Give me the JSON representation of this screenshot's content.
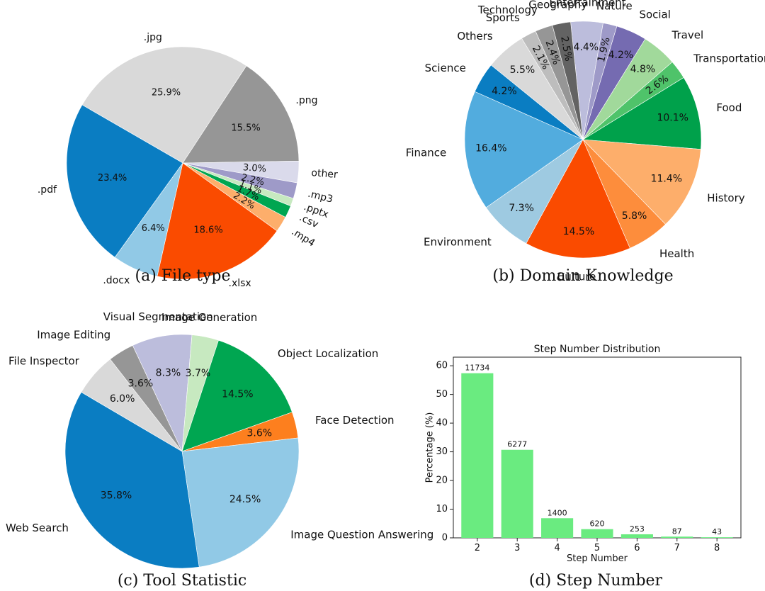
{
  "chart_data": [
    {
      "type": "pie",
      "caption": "(a) File type",
      "slices": [
        {
          "label": ".jpg",
          "value": 25.9,
          "pct": "25.9%",
          "color": "#d9d9d9"
        },
        {
          "label": ".png",
          "value": 15.5,
          "pct": "15.5%",
          "color": "#969696"
        },
        {
          "label": "other",
          "value": 3.0,
          "pct": "3.0%",
          "color": "#dadaeb"
        },
        {
          "label": ".mp3",
          "value": 2.2,
          "pct": "2.2%",
          "color": "#9e9ac8"
        },
        {
          "label": ".pptx",
          "value": 1.1,
          "pct": "1.1%",
          "color": "#c7e9c0"
        },
        {
          "label": ".csv",
          "value": 1.7,
          "pct": "1.7%",
          "color": "#00a651"
        },
        {
          "label": ".mp4",
          "value": 2.2,
          "pct": "2.2%",
          "color": "#fdae6b"
        },
        {
          "label": ".xlsx",
          "value": 18.6,
          "pct": "18.6%",
          "color": "#fa4b00"
        },
        {
          "label": ".docx",
          "value": 6.4,
          "pct": "6.4%",
          "color": "#91c9e6"
        },
        {
          "label": ".pdf",
          "value": 23.4,
          "pct": "23.4%",
          "color": "#0a7dc2"
        }
      ]
    },
    {
      "type": "pie",
      "caption": "(b) Domain Knowledge",
      "slices": [
        {
          "label": "Entertainment",
          "value": 4.4,
          "pct": "4.4%",
          "color": "#bcbddc"
        },
        {
          "label": "Nature",
          "value": 1.9,
          "pct": "1.9%",
          "color": "#9e9ac8"
        },
        {
          "label": "Social",
          "value": 4.2,
          "pct": "4.2%",
          "color": "#756bb1"
        },
        {
          "label": "Travel",
          "value": 4.8,
          "pct": "4.8%",
          "color": "#a1d99b"
        },
        {
          "label": "Transportation",
          "value": 2.6,
          "pct": "2.6%",
          "color": "#4fc36a"
        },
        {
          "label": "Food",
          "value": 10.1,
          "pct": "10.1%",
          "color": "#00a14b"
        },
        {
          "label": "History",
          "value": 11.4,
          "pct": "11.4%",
          "color": "#fdae6b"
        },
        {
          "label": "Health",
          "value": 5.8,
          "pct": "5.8%",
          "color": "#fd8d3c"
        },
        {
          "label": "Culture",
          "value": 14.5,
          "pct": "14.5%",
          "color": "#fa4b00"
        },
        {
          "label": "Environment",
          "value": 7.3,
          "pct": "7.3%",
          "color": "#9ecae1"
        },
        {
          "label": "Finance",
          "value": 16.4,
          "pct": "16.4%",
          "color": "#52acde"
        },
        {
          "label": "Science",
          "value": 4.2,
          "pct": "4.2%",
          "color": "#0a7dc2"
        },
        {
          "label": "Others",
          "value": 5.5,
          "pct": "5.5%",
          "color": "#d9d9d9"
        },
        {
          "label": "Sports",
          "value": 2.1,
          "pct": "2.1%",
          "color": "#bdbdbd"
        },
        {
          "label": "Technology",
          "value": 2.4,
          "pct": "2.4%",
          "color": "#969696"
        },
        {
          "label": "Geography",
          "value": 2.5,
          "pct": "2.5%",
          "color": "#636363"
        }
      ]
    },
    {
      "type": "pie",
      "caption": "(c) Tool Statistic",
      "slices": [
        {
          "label": "Visual Segmentation",
          "value": 8.3,
          "pct": "8.3%",
          "color": "#bcbddc"
        },
        {
          "label": "Image Generation",
          "value": 3.7,
          "pct": "3.7%",
          "color": "#c7e9c0"
        },
        {
          "label": "Object Localization",
          "value": 14.5,
          "pct": "14.5%",
          "color": "#00a651"
        },
        {
          "label": "Face Detection",
          "value": 3.6,
          "pct": "3.6%",
          "color": "#fd7f1e"
        },
        {
          "label": "Image Question Answering",
          "value": 24.5,
          "pct": "24.5%",
          "color": "#91c9e6"
        },
        {
          "label": "Web Search",
          "value": 35.8,
          "pct": "35.8%",
          "color": "#0a7dc2"
        },
        {
          "label": "File Inspector",
          "value": 6.0,
          "pct": "6.0%",
          "color": "#d9d9d9"
        },
        {
          "label": "Image Editing",
          "value": 3.6,
          "pct": "3.6%",
          "color": "#969696"
        }
      ]
    },
    {
      "type": "bar",
      "caption": "(d) Step Number",
      "title": "Step Number Distribution",
      "xlabel": "Step Number",
      "ylabel": "Percentage (%)",
      "categories": [
        "2",
        "3",
        "4",
        "5",
        "6",
        "7",
        "8"
      ],
      "values": [
        57.4,
        30.7,
        6.85,
        3.03,
        1.24,
        0.43,
        0.21
      ],
      "data_labels": [
        "11734",
        "6277",
        "1400",
        "620",
        "253",
        "87",
        "43"
      ],
      "yticks": [
        0,
        10,
        20,
        30,
        40,
        50,
        60
      ],
      "ylim": [
        0,
        63
      ],
      "color": "#6aeb80"
    }
  ]
}
